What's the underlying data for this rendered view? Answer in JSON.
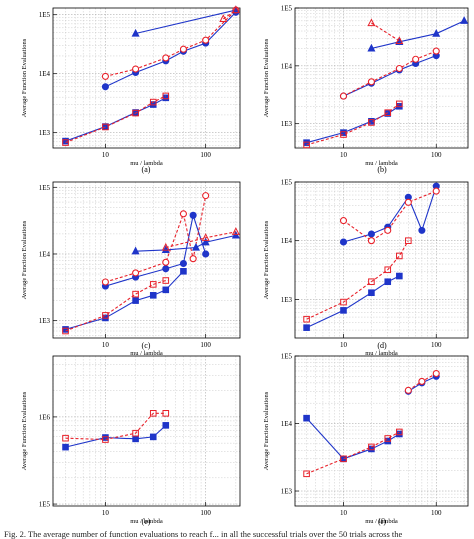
{
  "chart_data": [
    {
      "type": "line",
      "panel_label": "(a)",
      "xlabel": "mu / lambda",
      "ylabel": "Average Function Evaluations",
      "xscale": "log",
      "yscale": "log",
      "xlim": [
        3,
        220
      ],
      "ylim": [
        550,
        130000
      ],
      "grid": true,
      "xticks": [
        10,
        100
      ],
      "yticks": [
        1000,
        10000,
        100000
      ],
      "yticklabels": [
        "1E3",
        "1E4",
        "1E5"
      ],
      "series": [
        {
          "style": "blue-solid-square",
          "x": [
            4,
            10,
            20,
            30,
            40
          ],
          "y": [
            720,
            1270,
            2200,
            3000,
            3900
          ]
        },
        {
          "style": "red-dashed-square",
          "x": [
            4,
            10,
            20,
            30,
            40
          ],
          "y": [
            680,
            1250,
            2150,
            3300,
            4200
          ]
        },
        {
          "style": "blue-solid-circle",
          "x": [
            10,
            20,
            40,
            60,
            100,
            200
          ],
          "y": [
            6000,
            10500,
            16500,
            24000,
            33000,
            110000
          ]
        },
        {
          "style": "red-dashed-circle",
          "x": [
            10,
            20,
            40,
            60,
            100,
            200
          ],
          "y": [
            9000,
            12000,
            18500,
            26000,
            37000,
            120000
          ]
        },
        {
          "style": "blue-solid-triangle",
          "x": [
            20,
            200
          ],
          "y": [
            48000,
            120000
          ]
        },
        {
          "style": "red-dashed-triangle",
          "x": [
            150,
            200
          ],
          "y": [
            85000,
            120000
          ]
        }
      ]
    },
    {
      "type": "line",
      "panel_label": "(b)",
      "xlabel": "mu / lambda",
      "ylabel": "Average Function Evaluations",
      "xscale": "log",
      "yscale": "log",
      "xlim": [
        3,
        220
      ],
      "ylim": [
        380,
        100000
      ],
      "grid": true,
      "xticks": [
        10,
        100
      ],
      "yticks": [
        1000,
        10000,
        100000
      ],
      "yticklabels": [
        "1E3",
        "1E4",
        "1E5"
      ],
      "series": [
        {
          "style": "blue-solid-square",
          "x": [
            4,
            10,
            20,
            30,
            40
          ],
          "y": [
            470,
            700,
            1100,
            1500,
            2000
          ]
        },
        {
          "style": "red-dashed-square",
          "x": [
            4,
            10,
            20,
            30,
            40
          ],
          "y": [
            430,
            650,
            1050,
            1550,
            2200
          ]
        },
        {
          "style": "blue-solid-circle",
          "x": [
            10,
            20,
            40,
            60,
            100
          ],
          "y": [
            3000,
            5000,
            8500,
            11000,
            15000
          ]
        },
        {
          "style": "red-dashed-circle",
          "x": [
            10,
            20,
            40,
            60,
            100
          ],
          "y": [
            3000,
            5300,
            9000,
            13000,
            18000
          ]
        },
        {
          "style": "blue-solid-triangle",
          "x": [
            20,
            40,
            100,
            200
          ],
          "y": [
            20000,
            26000,
            36000,
            60000
          ]
        },
        {
          "style": "red-dashed-triangle",
          "x": [
            20,
            40
          ],
          "y": [
            55000,
            27000
          ]
        }
      ]
    },
    {
      "type": "line",
      "panel_label": "(c)",
      "xlabel": "mu / lambda",
      "ylabel": "Average Function Evaluations",
      "xscale": "log",
      "yscale": "log",
      "xlim": [
        3,
        220
      ],
      "ylim": [
        550,
        120000
      ],
      "grid": true,
      "xticks": [
        10,
        100
      ],
      "yticks": [
        1000,
        10000,
        100000
      ],
      "yticklabels": [
        "1E3",
        "1E4",
        "1E5"
      ],
      "series": [
        {
          "style": "blue-solid-square",
          "x": [
            4,
            10,
            20,
            30,
            40,
            60
          ],
          "y": [
            740,
            1100,
            2000,
            2400,
            2900,
            5500
          ]
        },
        {
          "style": "red-dashed-square",
          "x": [
            4,
            10,
            20,
            30,
            40
          ],
          "y": [
            700,
            1200,
            2500,
            3500,
            4000
          ]
        },
        {
          "style": "blue-solid-circle",
          "x": [
            10,
            20,
            40,
            60,
            75,
            100
          ],
          "y": [
            3300,
            4500,
            6000,
            7200,
            38000,
            10000
          ]
        },
        {
          "style": "red-dashed-circle",
          "x": [
            10,
            20,
            40,
            60,
            75,
            100
          ],
          "y": [
            3800,
            5200,
            7500,
            40000,
            8500,
            75000
          ]
        },
        {
          "style": "blue-solid-triangle",
          "x": [
            20,
            40,
            80,
            100,
            200
          ],
          "y": [
            11000,
            11500,
            12500,
            15000,
            19000
          ]
        },
        {
          "style": "red-dashed-triangle",
          "x": [
            40,
            100,
            200
          ],
          "y": [
            12500,
            17500,
            21500
          ]
        }
      ]
    },
    {
      "type": "line",
      "panel_label": "(d)",
      "xlabel": "mu / lambda",
      "ylabel": "Average Function Evaluations",
      "xscale": "log",
      "yscale": "log",
      "xlim": [
        3,
        220
      ],
      "ylim": [
        220,
        100000
      ],
      "grid": true,
      "xticks": [
        10,
        100
      ],
      "yticks": [
        1000,
        10000,
        100000
      ],
      "yticklabels": [
        "1E3",
        "1E4",
        "1E5"
      ],
      "series": [
        {
          "style": "blue-solid-square",
          "x": [
            4,
            10,
            20,
            30,
            40
          ],
          "y": [
            330,
            650,
            1300,
            2000,
            2500
          ]
        },
        {
          "style": "red-dashed-square",
          "x": [
            4,
            10,
            20,
            30,
            40,
            50
          ],
          "y": [
            460,
            900,
            2000,
            3200,
            5500,
            10000
          ]
        },
        {
          "style": "blue-solid-circle",
          "x": [
            10,
            20,
            30,
            50,
            70,
            100
          ],
          "y": [
            9500,
            13000,
            17000,
            55000,
            15000,
            85000
          ]
        },
        {
          "style": "red-dashed-circle",
          "x": [
            10,
            20,
            30,
            50,
            100
          ],
          "y": [
            22000,
            10000,
            15000,
            45000,
            70000
          ]
        }
      ]
    },
    {
      "type": "line",
      "panel_label": "(e)",
      "xlabel": "mu / lambda",
      "ylabel": "Average Function Evaluations",
      "xscale": "log",
      "yscale": "log",
      "xlim": [
        3,
        220
      ],
      "ylim": [
        95000,
        5000000
      ],
      "grid": true,
      "xticks": [
        10,
        100
      ],
      "yticks": [
        100000,
        1000000
      ],
      "yticklabels": [
        "1E5",
        "1E6"
      ],
      "series": [
        {
          "style": "blue-solid-square",
          "x": [
            4,
            10,
            20,
            30,
            40
          ],
          "y": [
            450000,
            580000,
            560000,
            590000,
            800000
          ]
        },
        {
          "style": "red-dashed-square",
          "x": [
            4,
            10,
            20,
            30,
            40
          ],
          "y": [
            570000,
            550000,
            650000,
            1100000,
            1100000
          ]
        }
      ]
    },
    {
      "type": "line",
      "panel_label": "(f)",
      "xlabel": "mu / lambda",
      "ylabel": "Average Function Evaluations",
      "xscale": "log",
      "yscale": "log",
      "xlim": [
        3,
        220
      ],
      "ylim": [
        600,
        100000
      ],
      "grid": true,
      "xticks": [
        10,
        100
      ],
      "yticks": [
        1000,
        10000,
        100000
      ],
      "yticklabels": [
        "1E3",
        "1E4",
        "1E5"
      ],
      "series": [
        {
          "style": "blue-solid-square",
          "x": [
            4,
            10,
            20,
            30,
            40
          ],
          "y": [
            12000,
            3000,
            4200,
            5500,
            7000
          ]
        },
        {
          "style": "red-dashed-square",
          "x": [
            4,
            10,
            20,
            30,
            40
          ],
          "y": [
            1800,
            3000,
            4500,
            6000,
            7500
          ]
        },
        {
          "style": "blue-solid-circle",
          "x": [
            50,
            70,
            100
          ],
          "y": [
            30000,
            40000,
            50000
          ]
        },
        {
          "style": "red-dashed-circle",
          "x": [
            50,
            70,
            100
          ],
          "y": [
            31000,
            42000,
            55000
          ]
        }
      ]
    }
  ],
  "caption": "Fig. 2. The average number of function evaluations to reach f... in all the successful trials over the 50 trials across the"
}
